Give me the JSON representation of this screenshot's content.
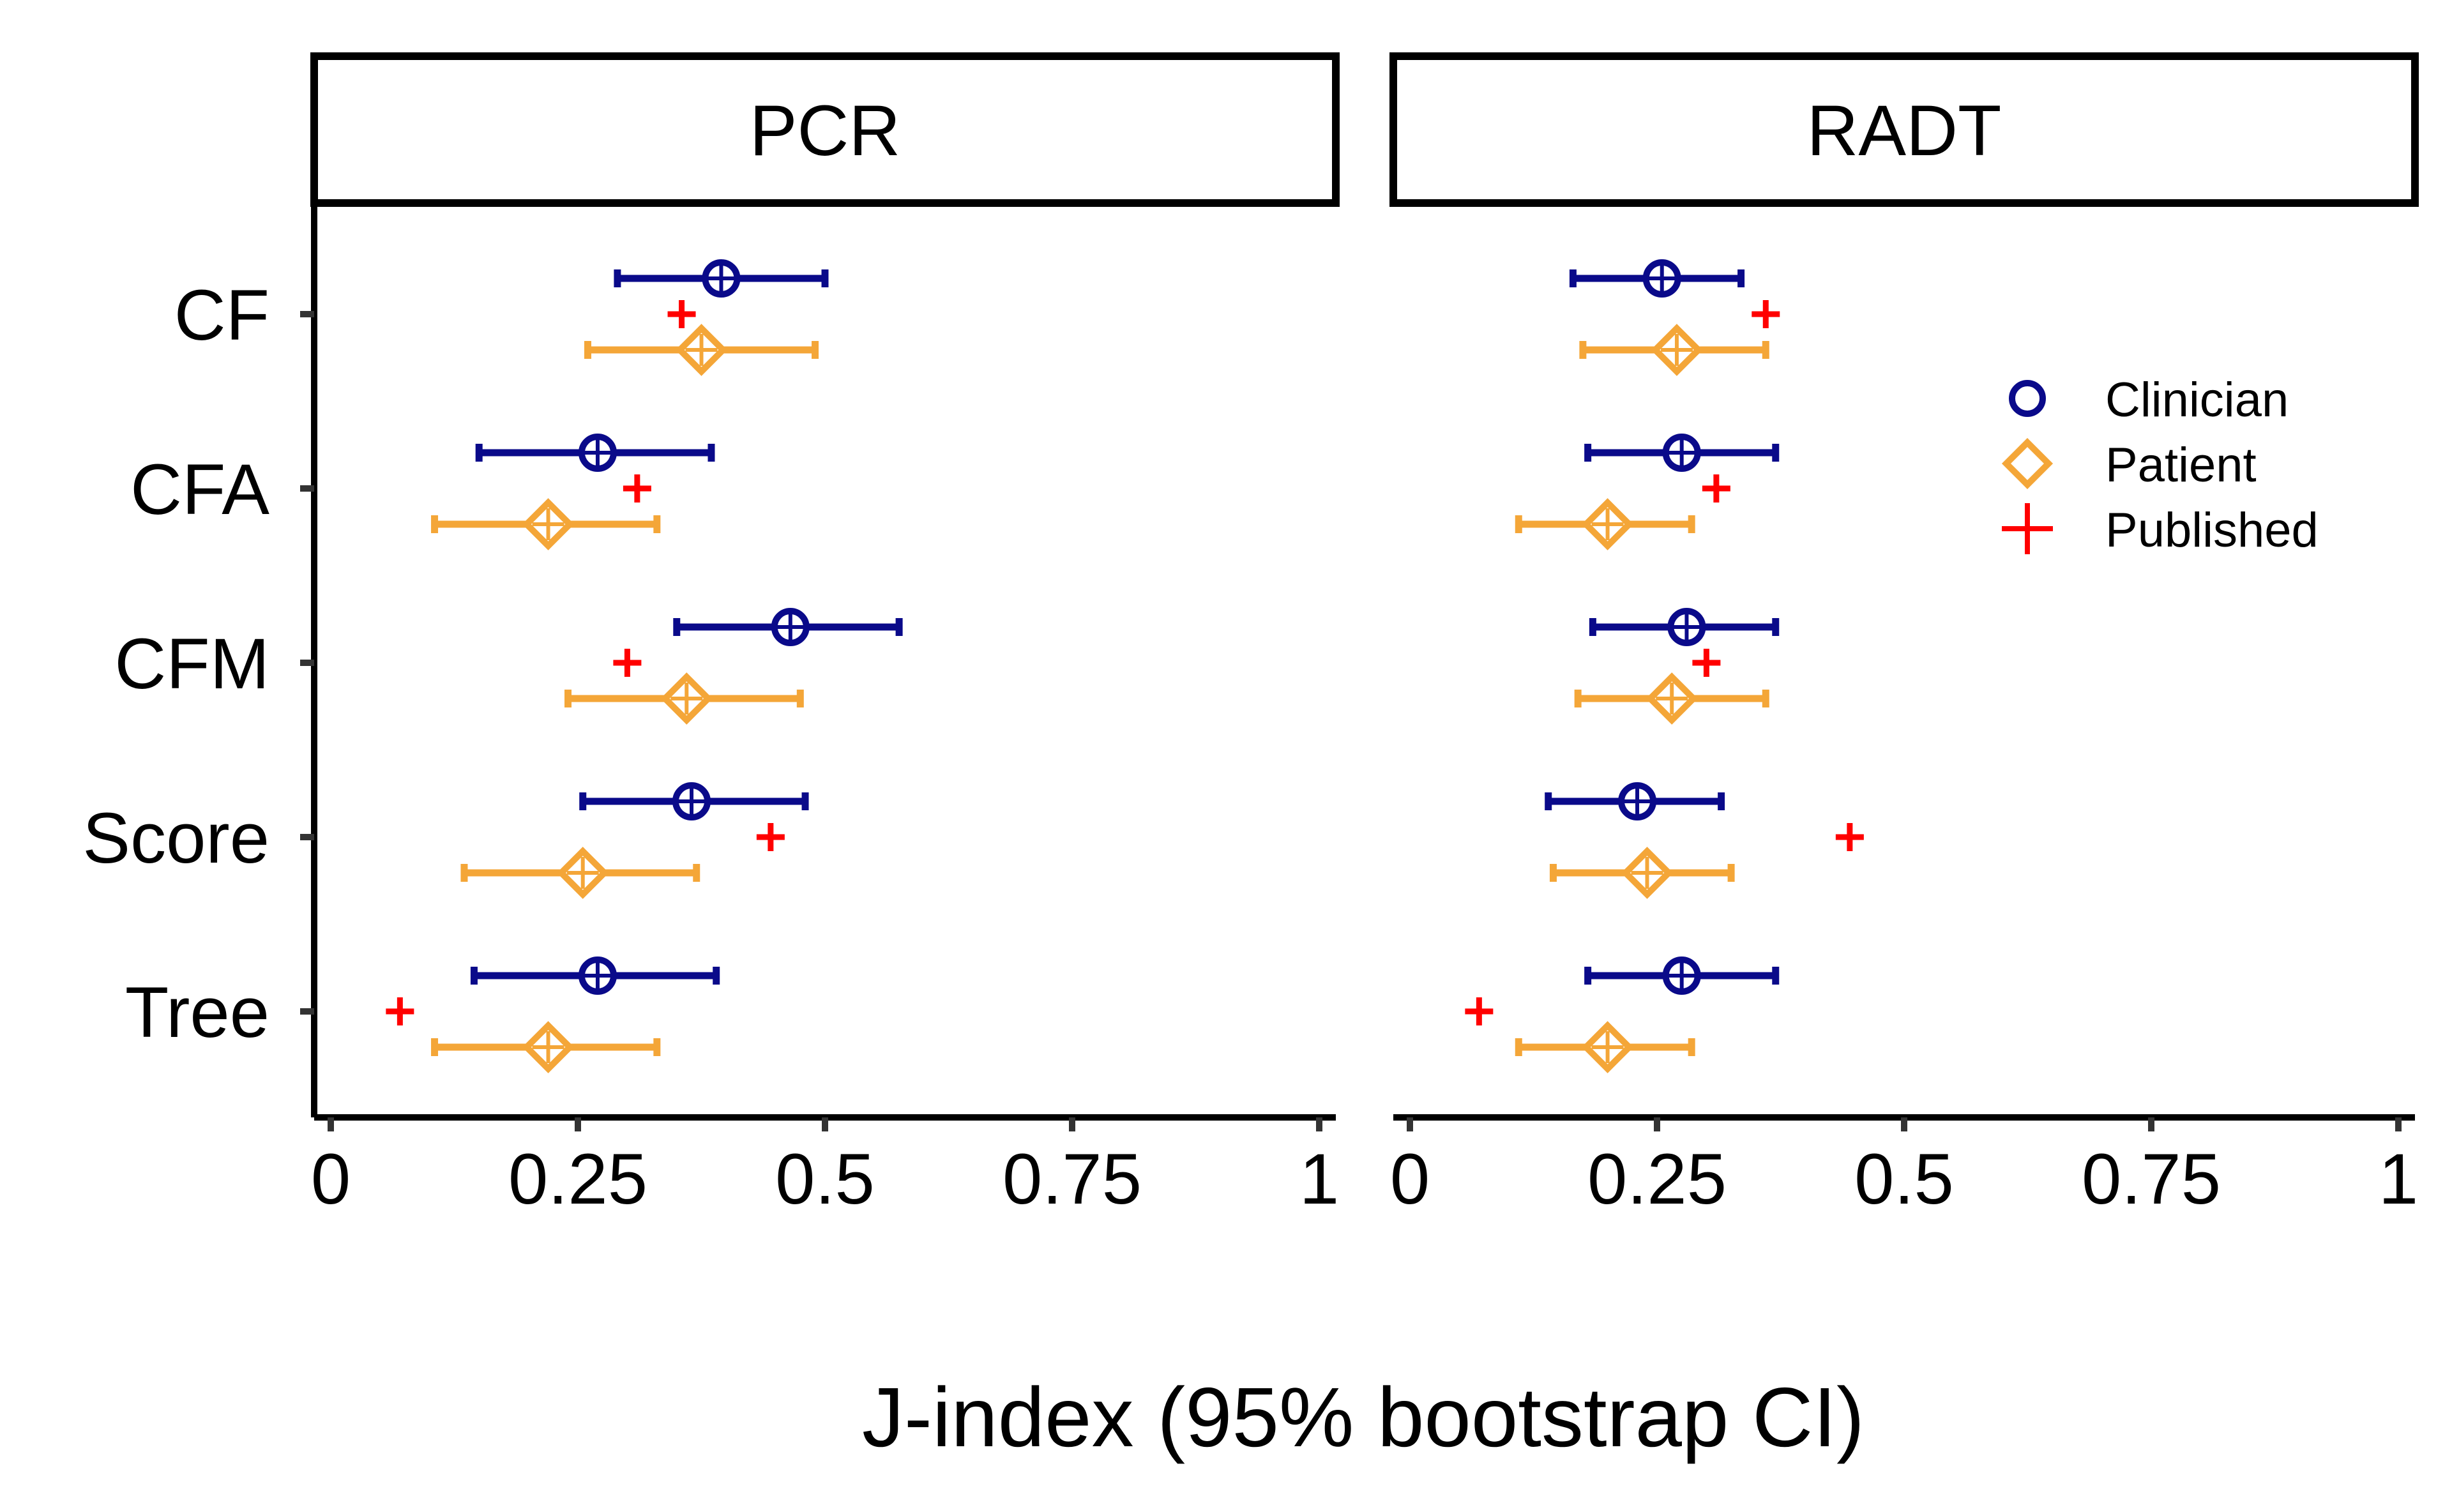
{
  "chart_data": {
    "type": "forest",
    "xlabel": "J-index (95% bootstrap CI)",
    "ylabel": "",
    "xlim": [
      0,
      1
    ],
    "x_ticks": [
      0,
      0.25,
      0.5,
      0.75,
      1
    ],
    "x_tick_labels": [
      "0",
      "0.25",
      "0.5",
      "0.75",
      "1"
    ],
    "categories": [
      "CF",
      "CFA",
      "CFM",
      "Score",
      "Tree"
    ],
    "legend": {
      "position": "top-right",
      "entries": [
        {
          "label": "Clinician",
          "symbol": "circle",
          "color": "#0a0a8a"
        },
        {
          "label": "Patient",
          "symbol": "diamond",
          "color": "#f4a638"
        },
        {
          "label": "Published",
          "symbol": "plus",
          "color": "#ff0000"
        }
      ]
    },
    "panels": [
      {
        "title": "PCR",
        "series": [
          {
            "name": "Clinician",
            "estimate": [
              0.395,
              0.27,
              0.465,
              0.365,
              0.27
            ],
            "lower": [
              0.29,
              0.15,
              0.35,
              0.255,
              0.145
            ],
            "upper": [
              0.5,
              0.385,
              0.575,
              0.48,
              0.39
            ]
          },
          {
            "name": "Patient",
            "estimate": [
              0.375,
              0.22,
              0.36,
              0.255,
              0.22
            ],
            "lower": [
              0.26,
              0.105,
              0.24,
              0.135,
              0.105
            ],
            "upper": [
              0.49,
              0.33,
              0.475,
              0.37,
              0.33
            ]
          },
          {
            "name": "Published",
            "estimate": [
              0.355,
              0.31,
              0.3,
              0.445,
              0.07
            ]
          }
        ]
      },
      {
        "title": "RADT",
        "series": [
          {
            "name": "Clinician",
            "estimate": [
              0.255,
              0.275,
              0.28,
              0.23,
              0.275
            ],
            "lower": [
              0.165,
              0.18,
              0.185,
              0.14,
              0.18
            ],
            "upper": [
              0.335,
              0.37,
              0.37,
              0.315,
              0.37
            ]
          },
          {
            "name": "Patient",
            "estimate": [
              0.27,
              0.2,
              0.265,
              0.24,
              0.2
            ],
            "lower": [
              0.175,
              0.11,
              0.17,
              0.145,
              0.11
            ],
            "upper": [
              0.36,
              0.285,
              0.36,
              0.325,
              0.285
            ]
          },
          {
            "name": "Published",
            "estimate": [
              0.36,
              0.31,
              0.3,
              0.445,
              0.07
            ]
          }
        ]
      }
    ]
  }
}
